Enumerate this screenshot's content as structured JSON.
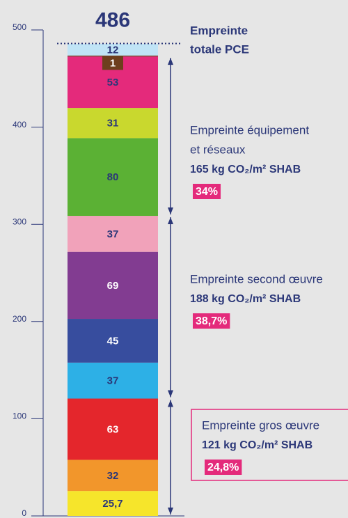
{
  "chart_data": {
    "type": "stacked-bar",
    "values": [
      25.7,
      32,
      63,
      37,
      45,
      69,
      37,
      80,
      31,
      53,
      1,
      12
    ],
    "value_labels": [
      "25,7",
      "32",
      "63",
      "37",
      "45",
      "69",
      "37",
      "80",
      "31",
      "53",
      "1",
      "12"
    ],
    "colors": [
      "#f6e52b",
      "#f2962b",
      "#e4262c",
      "#2db0e6",
      "#374d9e",
      "#823c91",
      "#f1a2ba",
      "#5bb134",
      "#c9d82e",
      "#e42a7b",
      "#6e3f1d",
      "#c0e4f6"
    ],
    "label_colors": [
      "#2b3778",
      "#2b3778",
      "#ffffff",
      "#2b3778",
      "#ffffff",
      "#ffffff",
      "#2b3778",
      "#2b3778",
      "#2b3778",
      "#2b3778",
      "#ffffff",
      "#2b3778"
    ],
    "ylim": [
      0,
      500
    ],
    "yticks": [
      0,
      100,
      200,
      300,
      400,
      500
    ],
    "total": 486,
    "total_annotation": [
      "Empreinte",
      "totale PCE"
    ],
    "groups": [
      {
        "lines": [
          "Empreinte équipement",
          "et réseaux",
          "165 kg CO₂/m² SHAB"
        ],
        "percent": "34%"
      },
      {
        "lines": [
          "Empreinte second œuvre",
          "188 kg CO₂/m² SHAB"
        ],
        "percent": "38,7%"
      },
      {
        "lines": [
          "Empreinte gros œuvre",
          "121 kg CO₂/m² SHAB"
        ],
        "percent": "24,8%"
      }
    ]
  }
}
